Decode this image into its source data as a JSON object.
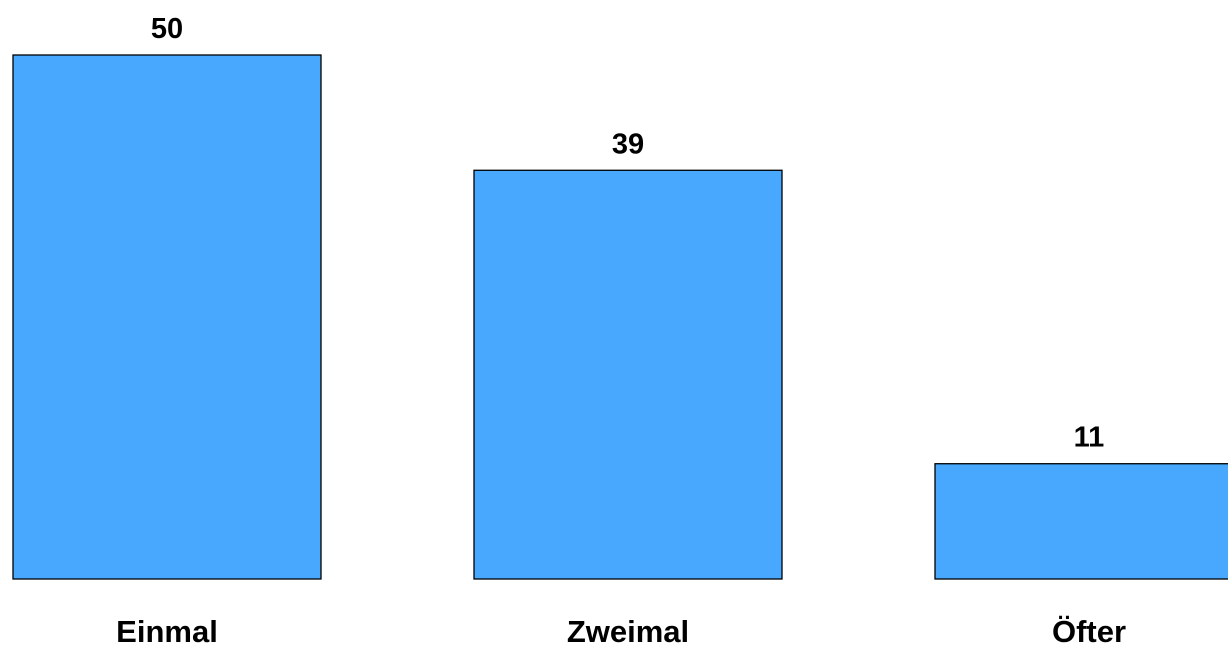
{
  "chart_data": {
    "type": "bar",
    "categories": [
      "Einmal",
      "Zweimal",
      "Öfter"
    ],
    "values": [
      50,
      39,
      11
    ],
    "value_labels": [
      "50",
      "39",
      "11"
    ],
    "title": "",
    "xlabel": "",
    "ylabel": "",
    "ylim": [
      0,
      50
    ],
    "grid": false,
    "legend": "none",
    "colors": {
      "bar_fill": "#47a8fe",
      "bar_stroke": "#000000",
      "text": "#000000",
      "background": "#ffffff"
    }
  }
}
